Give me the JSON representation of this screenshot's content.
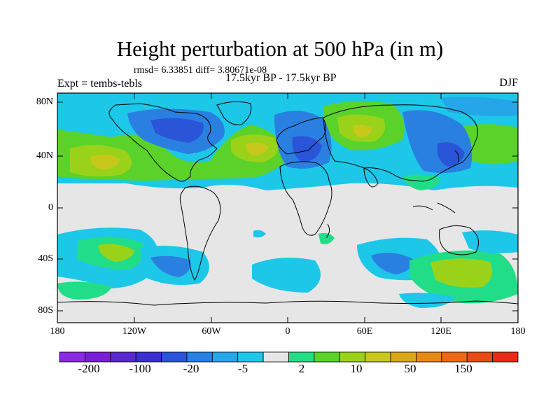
{
  "title": "Height perturbation at 500 hPa (in m)",
  "stats": "rmsd= 6.33851 diff= 3.80671e-08",
  "experiment": "Expt = tembs-tebls",
  "period": "17.5kyr BP - 17.5kyr BP",
  "season": "DJF",
  "lat_ticks": [
    {
      "label": "80N",
      "value": 80
    },
    {
      "label": "40N",
      "value": 40
    },
    {
      "label": "0",
      "value": 0
    },
    {
      "label": "40S",
      "value": -40
    },
    {
      "label": "80S",
      "value": -80
    }
  ],
  "lon_ticks": [
    {
      "label": "180",
      "value": -180
    },
    {
      "label": "120W",
      "value": -120
    },
    {
      "label": "60W",
      "value": -60
    },
    {
      "label": "0",
      "value": 0
    },
    {
      "label": "60E",
      "value": 60
    },
    {
      "label": "120E",
      "value": 120
    },
    {
      "label": "180",
      "value": 180
    }
  ],
  "colorbar": {
    "colors": [
      "#8a2be2",
      "#7a1fd8",
      "#5a28d0",
      "#3a2fd0",
      "#2a55d8",
      "#2a80e0",
      "#24a6e8",
      "#1cc7e8",
      "#e6e6e6",
      "#22dd88",
      "#5ad22a",
      "#9ad21a",
      "#c8c81a",
      "#d8a818",
      "#e48a18",
      "#e86a18",
      "#e84a18",
      "#e82a18"
    ],
    "labels": [
      {
        "text": "-200",
        "index": 1
      },
      {
        "text": "-100",
        "index": 3
      },
      {
        "text": "-20",
        "index": 5
      },
      {
        "text": "-5",
        "index": 7
      },
      {
        "text": "2",
        "index": 9
      },
      {
        "text": "10",
        "index": 11
      },
      {
        "text": "50",
        "index": 13
      },
      {
        "text": "150",
        "index": 15
      }
    ]
  },
  "palette": {
    "neutral": "#e6e6e6",
    "light_blue": "#1cc7e8",
    "mid_blue": "#24a6e8",
    "blue": "#2a80e0",
    "deep_blue": "#2a55d8",
    "teal_green": "#22dd88",
    "green": "#5ad22a",
    "yellow_green": "#9ad21a",
    "yellow": "#c8c81a",
    "orange": "#d8a818"
  }
}
